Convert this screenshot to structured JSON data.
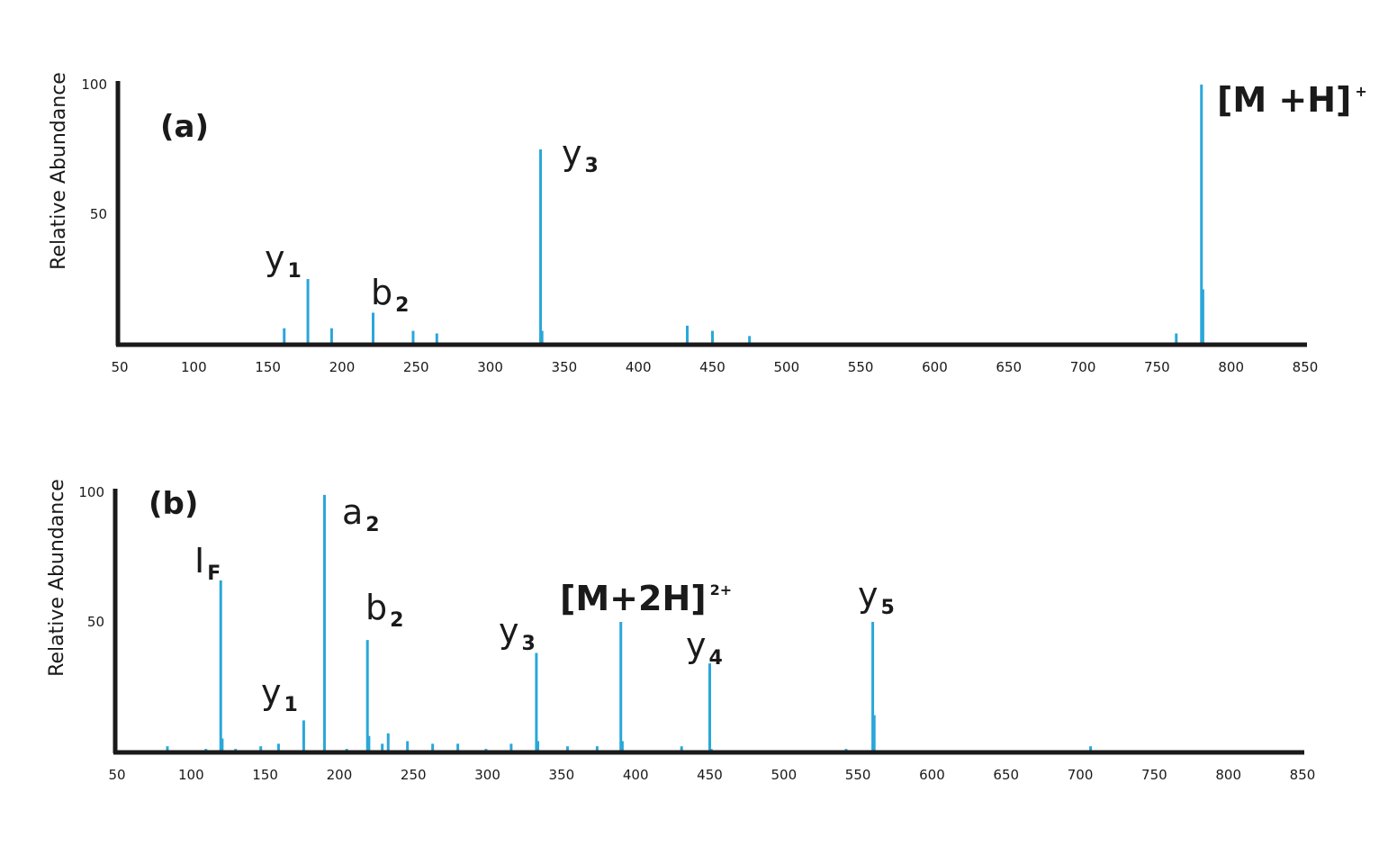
{
  "chart_data": [
    {
      "type": "bar",
      "panel_label": "(a)",
      "ylabel": "Relative Abundance",
      "xlim": [
        50,
        850
      ],
      "ylim": [
        0,
        100
      ],
      "x_ticks": [
        "50",
        "100",
        "150",
        "200",
        "250",
        "300",
        "350",
        "400",
        "450",
        "500",
        "550",
        "600",
        "650",
        "700",
        "750",
        "800",
        "850"
      ],
      "y_ticks": [
        "100",
        "50"
      ],
      "bar_color": "#2aa7d9",
      "peaks": [
        {
          "x": 161,
          "y": 6
        },
        {
          "x": 177,
          "y": 25
        },
        {
          "x": 193,
          "y": 6
        },
        {
          "x": 221,
          "y": 12
        },
        {
          "x": 248,
          "y": 5
        },
        {
          "x": 264,
          "y": 4
        },
        {
          "x": 334,
          "y": 75
        },
        {
          "x": 335,
          "y": 5
        },
        {
          "x": 433,
          "y": 7
        },
        {
          "x": 450,
          "y": 5
        },
        {
          "x": 475,
          "y": 3
        },
        {
          "x": 763,
          "y": 4
        },
        {
          "x": 780,
          "y": 100
        },
        {
          "x": 781,
          "y": 21
        }
      ],
      "annotations": [
        {
          "base": "y",
          "sub": "1",
          "sup": "",
          "bold": false,
          "x": 177
        },
        {
          "base": "b",
          "sub": "2",
          "sup": "",
          "bold": false,
          "x": 221
        },
        {
          "base": "y",
          "sub": "3",
          "sup": "",
          "bold": false,
          "x": 334
        },
        {
          "base": "[M +H]",
          "sub": "",
          "sup": "+",
          "bold": true,
          "x": 780
        }
      ]
    },
    {
      "type": "bar",
      "panel_label": "(b)",
      "ylabel": "Relative Abundance",
      "xlim": [
        50,
        850
      ],
      "ylim": [
        0,
        100
      ],
      "x_ticks": [
        "50",
        "100",
        "150",
        "200",
        "250",
        "300",
        "350",
        "400",
        "450",
        "500",
        "550",
        "600",
        "650",
        "700",
        "750",
        "800",
        "850"
      ],
      "y_ticks": [
        "100",
        "50"
      ],
      "bar_color": "#2aa7d9",
      "peaks": [
        {
          "x": 84,
          "y": 2
        },
        {
          "x": 110,
          "y": 1
        },
        {
          "x": 120,
          "y": 66
        },
        {
          "x": 121,
          "y": 5
        },
        {
          "x": 130,
          "y": 1
        },
        {
          "x": 147,
          "y": 2
        },
        {
          "x": 159,
          "y": 3
        },
        {
          "x": 176,
          "y": 12
        },
        {
          "x": 190,
          "y": 99
        },
        {
          "x": 205,
          "y": 1
        },
        {
          "x": 219,
          "y": 43
        },
        {
          "x": 220,
          "y": 6
        },
        {
          "x": 229,
          "y": 3
        },
        {
          "x": 233,
          "y": 7
        },
        {
          "x": 246,
          "y": 4
        },
        {
          "x": 263,
          "y": 3
        },
        {
          "x": 280,
          "y": 3
        },
        {
          "x": 299,
          "y": 1
        },
        {
          "x": 316,
          "y": 3
        },
        {
          "x": 333,
          "y": 38
        },
        {
          "x": 334,
          "y": 4
        },
        {
          "x": 354,
          "y": 2
        },
        {
          "x": 374,
          "y": 2
        },
        {
          "x": 390,
          "y": 50
        },
        {
          "x": 391,
          "y": 4
        },
        {
          "x": 431,
          "y": 2
        },
        {
          "x": 450,
          "y": 34
        },
        {
          "x": 451,
          "y": 1
        },
        {
          "x": 542,
          "y": 1
        },
        {
          "x": 560,
          "y": 50
        },
        {
          "x": 561,
          "y": 14
        },
        {
          "x": 707,
          "y": 2
        }
      ],
      "annotations": [
        {
          "base": "I",
          "sub": "F",
          "sup": "",
          "bold": false,
          "x": 120
        },
        {
          "base": "y",
          "sub": "1",
          "sup": "",
          "bold": false,
          "x": 176
        },
        {
          "base": "a",
          "sub": "2",
          "sup": "",
          "bold": false,
          "x": 190
        },
        {
          "base": "b",
          "sub": "2",
          "sup": "",
          "bold": false,
          "x": 219
        },
        {
          "base": "y",
          "sub": "3",
          "sup": "",
          "bold": false,
          "x": 333
        },
        {
          "base": "[M+2H]",
          "sub": "",
          "sup": "2+",
          "bold": true,
          "x": 390
        },
        {
          "base": "y",
          "sub": "4",
          "sup": "",
          "bold": false,
          "x": 450
        },
        {
          "base": "y",
          "sub": "5",
          "sup": "",
          "bold": false,
          "x": 560
        }
      ]
    }
  ]
}
